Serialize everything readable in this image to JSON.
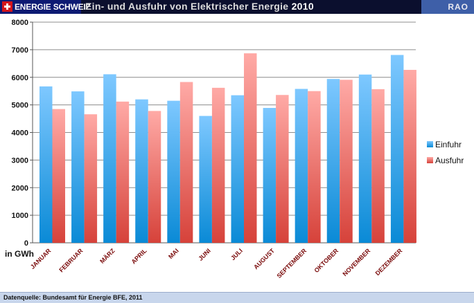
{
  "header": {
    "brand_label": "ENERGIE SCHWEIZ",
    "title": "Ein- und Ausfuhr von Elektrischer Energie",
    "title_year": "2010",
    "org": "RAO"
  },
  "footer": {
    "source": "Datenquelle: Bundesamt für Energie BFE, 2011"
  },
  "colors": {
    "import_top": "#7ec8ff",
    "import_bottom": "#0a8ad6",
    "export_top": "#ffaaa6",
    "export_bottom": "#d6423a",
    "tick_label": "#7a0b0b"
  },
  "chart_data": {
    "type": "bar",
    "xlabel": "",
    "ylabel": "in GWh",
    "ylim": [
      0,
      8000
    ],
    "yticks": [
      0,
      1000,
      2000,
      3000,
      4000,
      5000,
      6000,
      7000,
      8000
    ],
    "grid": true,
    "legend_position": "right",
    "categories": [
      "JANUAR",
      "FEBRUAR",
      "MÄRZ",
      "APRIL",
      "MAI",
      "JUNI",
      "JULI",
      "AUGUST",
      "SEPTEMBER",
      "OKTOBER",
      "NOVEMBER",
      "DEZEMBER"
    ],
    "series": [
      {
        "name": "Einfuhr",
        "values": [
          5670,
          5490,
          6110,
          5200,
          5150,
          4600,
          5350,
          4890,
          5580,
          5940,
          6100,
          6810
        ]
      },
      {
        "name": "Ausfuhr",
        "values": [
          4850,
          4660,
          5120,
          4780,
          5830,
          5620,
          6870,
          5360,
          5500,
          5910,
          5570,
          6270
        ]
      }
    ]
  }
}
